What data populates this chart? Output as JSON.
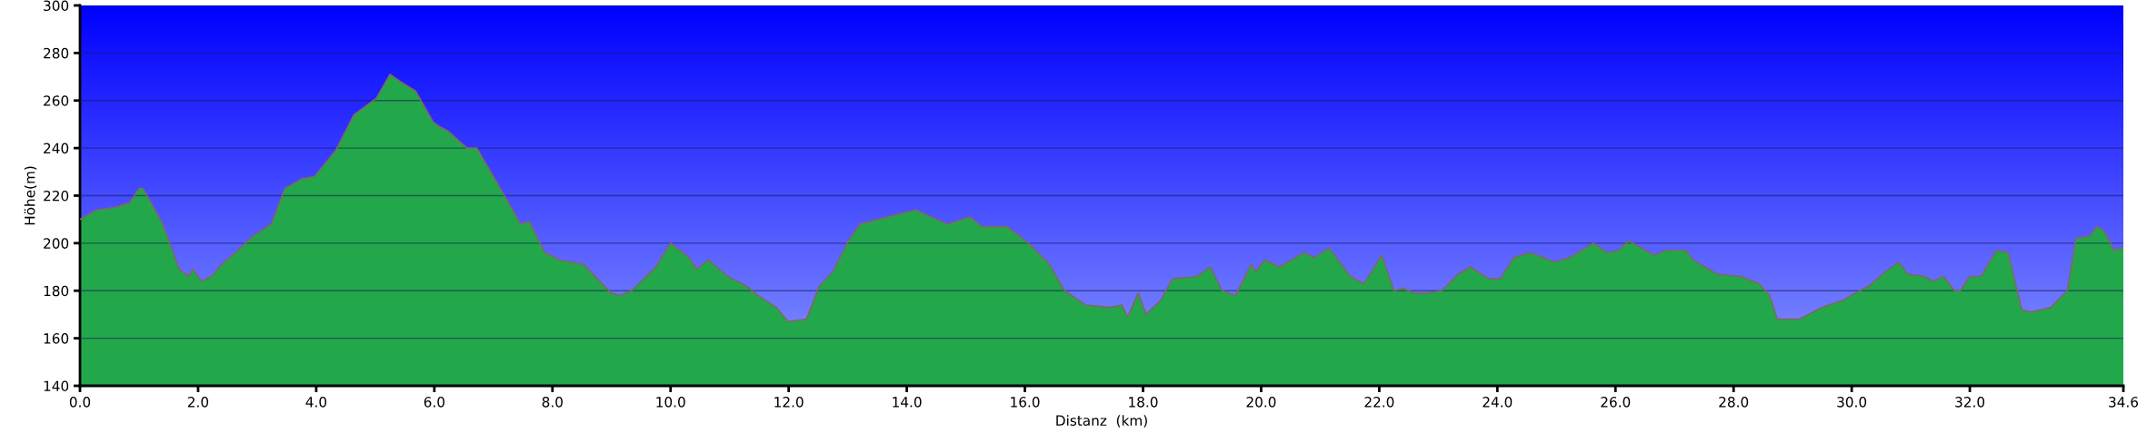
{
  "chart_data": {
    "type": "area",
    "xlabel": "Distanz  (km)",
    "ylabel": "Höhe(m)",
    "xlim": [
      0,
      34.6
    ],
    "ylim": [
      140,
      300
    ],
    "xticks": [
      {
        "value": 0,
        "label": "0.0"
      },
      {
        "value": 2,
        "label": "2.0"
      },
      {
        "value": 4,
        "label": "4.0"
      },
      {
        "value": 6,
        "label": "6.0"
      },
      {
        "value": 8,
        "label": "8.0"
      },
      {
        "value": 10,
        "label": "10.0"
      },
      {
        "value": 12,
        "label": "12.0"
      },
      {
        "value": 14,
        "label": "14.0"
      },
      {
        "value": 16,
        "label": "16.0"
      },
      {
        "value": 18,
        "label": "18.0"
      },
      {
        "value": 20,
        "label": "20.0"
      },
      {
        "value": 22,
        "label": "22.0"
      },
      {
        "value": 24,
        "label": "24.0"
      },
      {
        "value": 26,
        "label": "26.0"
      },
      {
        "value": 28,
        "label": "28.0"
      },
      {
        "value": 30,
        "label": "30.0"
      },
      {
        "value": 32,
        "label": "32.0"
      },
      {
        "value": 34.6,
        "label": "34.6"
      }
    ],
    "yticks": [
      140,
      160,
      180,
      200,
      220,
      240,
      260,
      280,
      300
    ],
    "grid": "y",
    "legend": false,
    "series": [
      {
        "color": "#22a84a",
        "x": [
          0,
          0.28,
          0.59,
          0.84,
          1.0,
          1.07,
          1.4,
          1.68,
          1.84,
          1.91,
          2.06,
          2.22,
          2.4,
          2.63,
          2.93,
          3.24,
          3.47,
          3.75,
          3.97,
          4.33,
          4.64,
          5.02,
          5.25,
          5.42,
          5.68,
          5.98,
          6.09,
          6.24,
          6.55,
          6.72,
          7.21,
          7.46,
          7.61,
          7.87,
          8.12,
          8.53,
          8.99,
          9.14,
          9.34,
          9.75,
          10.0,
          10.31,
          10.44,
          10.64,
          10.97,
          11.28,
          11.48,
          11.79,
          11.99,
          12.3,
          12.52,
          12.75,
          13.01,
          13.21,
          13.67,
          14.15,
          14.69,
          15.07,
          15.27,
          15.7,
          16.06,
          16.42,
          16.67,
          17.03,
          17.44,
          17.64,
          17.74,
          17.92,
          18.05,
          18.3,
          18.5,
          18.91,
          19.14,
          19.34,
          19.57,
          19.83,
          19.91,
          20.06,
          20.31,
          20.72,
          20.9,
          21.15,
          21.51,
          21.74,
          21.92,
          22.04,
          22.25,
          22.4,
          22.6,
          22.81,
          23.06,
          23.34,
          23.54,
          23.85,
          24.05,
          24.28,
          24.56,
          24.97,
          25.23,
          25.63,
          25.86,
          26.06,
          26.22,
          26.65,
          26.86,
          27.19,
          27.31,
          27.72,
          28.12,
          28.43,
          28.61,
          28.74,
          28.94,
          29.11,
          29.5,
          29.85,
          30.06,
          30.29,
          30.57,
          30.8,
          30.95,
          31.23,
          31.38,
          31.56,
          31.74,
          31.84,
          32.0,
          32.19,
          32.45,
          32.65,
          32.88,
          33.04,
          33.37,
          33.65,
          33.8,
          34.03,
          34.15,
          34.28,
          34.44,
          34.6
        ],
        "values": [
          210,
          214,
          215,
          217,
          223,
          223,
          208,
          189,
          186,
          189,
          184,
          186,
          191,
          196,
          203,
          208,
          223,
          227,
          228,
          239,
          254,
          261,
          271,
          268,
          264,
          251,
          249,
          247,
          240,
          240,
          219,
          208,
          209,
          196,
          193,
          191,
          179,
          178,
          180,
          190,
          200,
          194,
          189,
          193,
          186,
          182,
          178,
          173,
          167,
          168,
          182,
          188,
          201,
          208,
          211,
          214,
          208,
          211,
          207,
          207,
          200,
          191,
          180,
          174,
          173,
          174,
          169,
          179,
          170,
          176,
          185,
          186,
          190,
          180,
          178,
          191,
          188,
          193,
          190,
          196,
          194,
          198,
          186,
          183,
          190,
          195,
          180,
          181,
          179,
          179,
          180,
          187,
          190,
          185,
          185,
          194,
          196,
          192,
          194,
          200,
          196,
          197,
          201,
          195,
          197,
          197,
          193,
          187,
          186,
          183,
          178,
          168,
          168,
          168,
          173,
          176,
          179,
          182,
          188,
          192,
          187,
          186,
          184,
          186,
          180,
          180,
          186,
          186,
          197,
          196,
          172,
          171,
          173,
          180,
          202,
          203,
          207,
          205,
          197,
          198
        ]
      }
    ]
  }
}
